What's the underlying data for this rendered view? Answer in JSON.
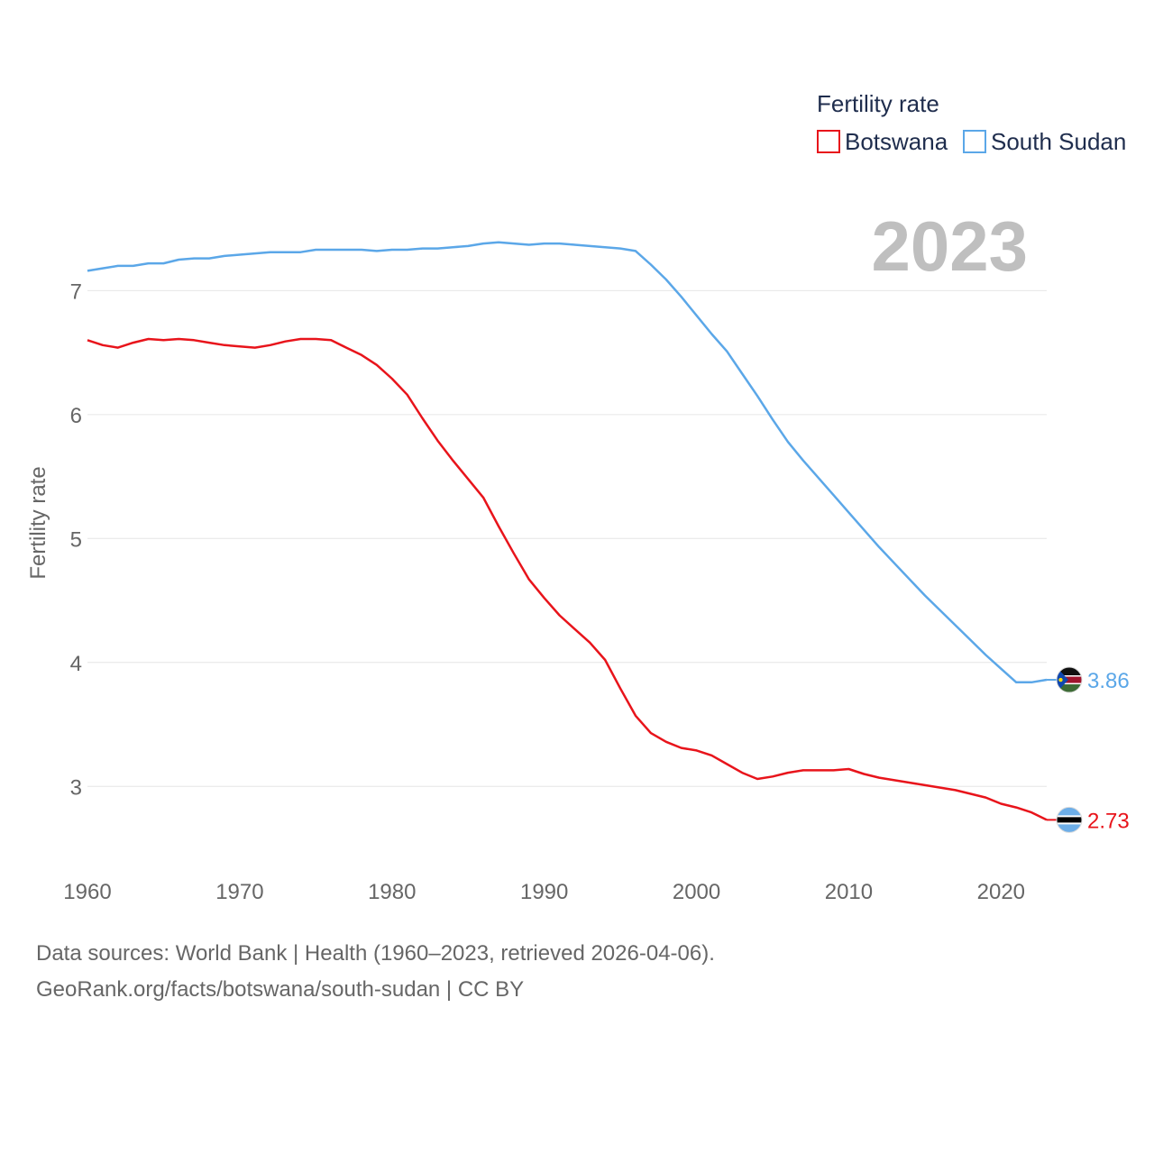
{
  "chart_data": {
    "type": "line",
    "legend_title": "Fertility rate",
    "ylabel": "Fertility rate",
    "xlabel": "",
    "year_label": "2023",
    "xlim": [
      1960,
      2023
    ],
    "ylim": [
      2.5,
      7.65
    ],
    "x_ticks": [
      1960,
      1970,
      1980,
      1990,
      2000,
      2010,
      2020
    ],
    "y_ticks": [
      3,
      4,
      5,
      6,
      7
    ],
    "grid": true,
    "legend_position": "top-right",
    "x": [
      1960,
      1961,
      1962,
      1963,
      1964,
      1965,
      1966,
      1967,
      1968,
      1969,
      1970,
      1971,
      1972,
      1973,
      1974,
      1975,
      1976,
      1977,
      1978,
      1979,
      1980,
      1981,
      1982,
      1983,
      1984,
      1985,
      1986,
      1987,
      1988,
      1989,
      1990,
      1991,
      1992,
      1993,
      1994,
      1995,
      1996,
      1997,
      1998,
      1999,
      2000,
      2001,
      2002,
      2003,
      2004,
      2005,
      2006,
      2007,
      2008,
      2009,
      2010,
      2011,
      2012,
      2013,
      2014,
      2015,
      2016,
      2017,
      2018,
      2019,
      2020,
      2021,
      2022,
      2023
    ],
    "series": [
      {
        "name": "Botswana",
        "color": "#e8141b",
        "end_label": "2.73",
        "values": [
          6.6,
          6.56,
          6.54,
          6.58,
          6.61,
          6.6,
          6.61,
          6.6,
          6.58,
          6.56,
          6.55,
          6.54,
          6.56,
          6.59,
          6.61,
          6.61,
          6.6,
          6.54,
          6.48,
          6.4,
          6.29,
          6.16,
          5.97,
          5.79,
          5.63,
          5.48,
          5.33,
          5.1,
          4.88,
          4.67,
          4.52,
          4.38,
          4.27,
          4.16,
          4.02,
          3.79,
          3.57,
          3.43,
          3.36,
          3.31,
          3.29,
          3.25,
          3.18,
          3.11,
          3.06,
          3.08,
          3.11,
          3.13,
          3.13,
          3.13,
          3.14,
          3.1,
          3.07,
          3.05,
          3.03,
          3.01,
          2.99,
          2.97,
          2.94,
          2.91,
          2.86,
          2.83,
          2.79,
          2.73
        ]
      },
      {
        "name": "South Sudan",
        "color": "#5ba7e8",
        "end_label": "3.86",
        "values": [
          7.16,
          7.18,
          7.2,
          7.2,
          7.22,
          7.22,
          7.25,
          7.26,
          7.26,
          7.28,
          7.29,
          7.3,
          7.31,
          7.31,
          7.31,
          7.33,
          7.33,
          7.33,
          7.33,
          7.32,
          7.33,
          7.33,
          7.34,
          7.34,
          7.35,
          7.36,
          7.38,
          7.39,
          7.38,
          7.37,
          7.38,
          7.38,
          7.37,
          7.36,
          7.35,
          7.34,
          7.32,
          7.21,
          7.09,
          6.95,
          6.8,
          6.65,
          6.51,
          6.33,
          6.15,
          5.96,
          5.78,
          5.63,
          5.49,
          5.35,
          5.21,
          5.07,
          4.93,
          4.8,
          4.67,
          4.54,
          4.42,
          4.3,
          4.18,
          4.06,
          3.95,
          3.84,
          3.84,
          3.86
        ]
      }
    ]
  },
  "footer": {
    "line1": "Data sources: World Bank | Health (1960–2023, retrieved 2026-04-06).",
    "line2": "GeoRank.org/facts/botswana/south-sudan | CC BY"
  }
}
